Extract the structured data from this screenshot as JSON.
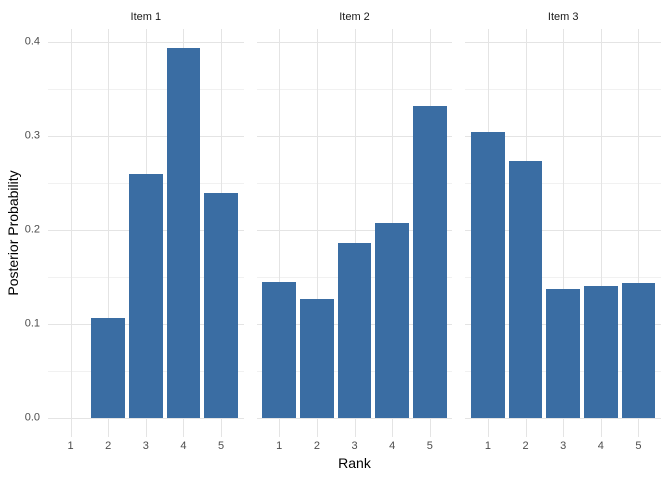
{
  "chart_data": {
    "type": "bar",
    "title": "",
    "xlabel": "Rank",
    "ylabel": "Posterior Probability",
    "categories": [
      "1",
      "2",
      "3",
      "4",
      "5"
    ],
    "facets": [
      {
        "label": "Item 1",
        "values": [
          0,
          0.107,
          0.26,
          0.394,
          0.239
        ]
      },
      {
        "label": "Item 2",
        "values": [
          0.145,
          0.127,
          0.186,
          0.208,
          0.332
        ]
      },
      {
        "label": "Item 3",
        "values": [
          0.304,
          0.273,
          0.138,
          0.141,
          0.144
        ]
      }
    ],
    "y_ticks": [
      0,
      0.1,
      0.2,
      0.3,
      0.4
    ],
    "y_tick_labels": [
      "0.0",
      "0.1",
      "0.2",
      "0.3",
      "0.4"
    ],
    "y_minor_ticks": [
      0.05,
      0.15,
      0.25,
      0.35
    ],
    "ylim": [
      -0.0197,
      0.4137
    ],
    "x_expand": 0.6,
    "bar_width_fraction": 0.9,
    "grid": "major+minor",
    "legend": "none",
    "colors": {
      "bar": "#3A6DA3",
      "grid_major": "#E4E4E4",
      "grid_minor": "#F1F1F1",
      "tick_label": "#4D4D4D",
      "strip_label": "#1A1A1A",
      "axis_title": "#000000",
      "background": "#FFFFFF"
    }
  }
}
